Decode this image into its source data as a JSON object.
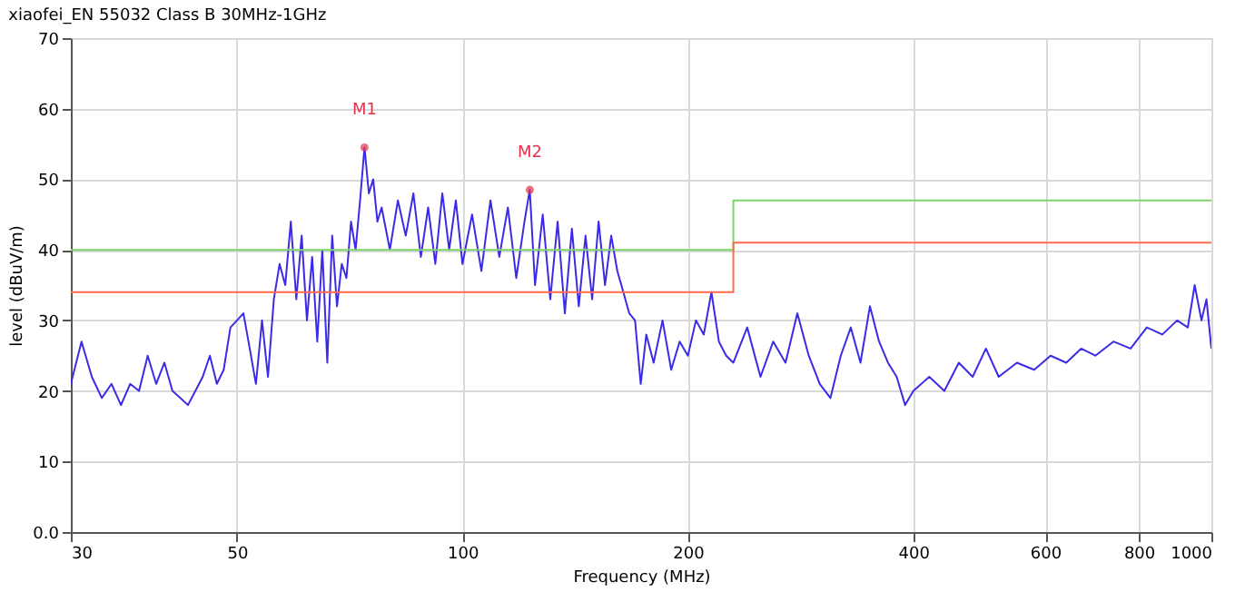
{
  "chart_data": {
    "type": "line",
    "title": "xiaofei_EN 55032 Class B 30MHz-1GHz",
    "xlabel": "Frequency (MHz)",
    "ylabel": "level (dBuV/m)",
    "log": "x",
    "grid": true,
    "xlim": [
      30,
      1000
    ],
    "xticks": [
      30,
      50,
      100,
      200,
      400,
      600,
      800,
      1000
    ],
    "ylim": [
      0,
      70
    ],
    "yticks": [
      {
        "value": 0,
        "label": "0.0"
      },
      10,
      20,
      30,
      40,
      50,
      60,
      70
    ],
    "series": [
      {
        "color": "#3b2be8",
        "x": [
          30,
          31,
          32,
          33,
          34,
          35,
          36,
          37,
          38,
          39,
          40,
          41,
          42,
          43,
          44,
          45,
          46,
          47,
          48,
          49,
          50,
          51,
          52,
          53,
          54,
          55,
          56,
          57,
          58,
          59,
          60,
          61,
          62,
          63,
          64,
          65,
          66,
          67,
          68,
          69,
          70,
          71,
          72,
          73,
          74,
          75,
          76,
          77,
          78,
          80,
          82,
          84,
          86,
          88,
          90,
          92,
          94,
          96,
          98,
          100,
          103,
          106,
          109,
          112,
          115,
          118,
          121,
          123,
          125,
          128,
          131,
          134,
          137,
          140,
          143,
          146,
          149,
          152,
          155,
          158,
          161,
          164,
          167,
          170,
          173,
          176,
          180,
          185,
          190,
          195,
          200,
          205,
          210,
          215,
          220,
          225,
          230,
          240,
          250,
          260,
          270,
          280,
          290,
          300,
          310,
          320,
          330,
          340,
          350,
          360,
          370,
          380,
          390,
          400,
          420,
          440,
          460,
          480,
          500,
          520,
          550,
          580,
          610,
          640,
          670,
          700,
          740,
          780,
          820,
          860,
          900,
          930,
          950,
          970,
          985,
          1000
        ],
        "values": [
          21,
          27,
          22,
          19,
          21,
          18,
          21,
          20,
          25,
          21,
          24,
          20,
          19,
          18,
          20,
          22,
          25,
          21,
          23,
          29,
          30,
          31,
          26,
          21,
          30,
          22,
          33,
          38,
          35,
          44,
          33,
          42,
          30,
          39,
          27,
          40,
          24,
          42,
          32,
          38,
          36,
          44,
          40,
          47,
          54.5,
          48,
          50,
          44,
          46,
          40,
          47,
          42,
          48,
          39,
          46,
          38,
          48,
          40,
          47,
          38,
          45,
          37,
          47,
          39,
          46,
          36,
          44,
          48.5,
          35,
          45,
          33,
          44,
          31,
          43,
          32,
          42,
          33,
          44,
          35,
          42,
          37,
          34,
          31,
          30,
          21,
          28,
          24,
          30,
          23,
          27,
          25,
          30,
          28,
          34,
          27,
          25,
          24,
          29,
          22,
          27,
          24,
          31,
          25,
          21,
          19,
          25,
          29,
          24,
          32,
          27,
          24,
          22,
          18,
          20,
          22,
          20,
          24,
          22,
          26,
          22,
          24,
          23,
          25,
          24,
          26,
          25,
          27,
          26,
          29,
          28,
          30,
          29,
          35,
          30,
          33,
          26
        ]
      },
      {
        "type": "step",
        "color": "#7fd36b",
        "x": [
          30,
          230,
          1000
        ],
        "values": [
          40,
          47,
          47
        ]
      },
      {
        "type": "step",
        "color": "#ff6a4d",
        "x": [
          30,
          230,
          1000
        ],
        "values": [
          34,
          41,
          41
        ]
      },
      {
        "type": "scatter",
        "color": "#e8304a",
        "marker": "circle",
        "x": [
          74,
          123
        ],
        "values": [
          54.5,
          48.5
        ]
      }
    ],
    "annotations": [
      {
        "text": "M1",
        "x": 74,
        "y": 54.5
      },
      {
        "text": "M2",
        "x": 123,
        "y": 48.5
      }
    ]
  }
}
